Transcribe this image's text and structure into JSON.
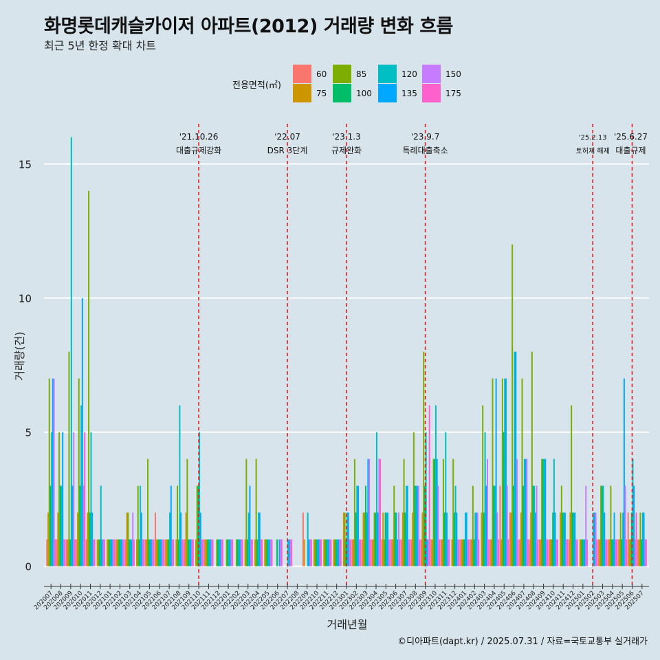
{
  "title": "화명롯데캐슬카이저 아파트(2012) 거래량 변화 흐름",
  "subtitle": "최근 5년 한정 확대 차트",
  "caption": "©디아파트(dapt.kr) / 2025.07.31 / 자료=국토교통부 실거래가",
  "chart_data": {
    "type": "bar",
    "xlabel": "거래년월",
    "ylabel": "거래량(건)",
    "ylim": [
      -0.6,
      16.5
    ],
    "yticks": [
      0,
      5,
      10,
      15
    ],
    "grid": true,
    "legend": {
      "title": "전용면적(㎡)",
      "placement": "top",
      "entries": [
        {
          "label": "60",
          "color": "#F8766D"
        },
        {
          "label": "75",
          "color": "#CD9600"
        },
        {
          "label": "85",
          "color": "#7CAE00"
        },
        {
          "label": "100",
          "color": "#00BE67"
        },
        {
          "label": "120",
          "color": "#00BFC4"
        },
        {
          "label": "135",
          "color": "#00A9FF"
        },
        {
          "label": "150",
          "color": "#C77CFF"
        },
        {
          "label": "175",
          "color": "#FF61CC"
        }
      ]
    },
    "categories": [
      "202007",
      "202008",
      "202009",
      "202010",
      "202011",
      "202012",
      "202101",
      "202102",
      "202103",
      "202104",
      "202105",
      "202106",
      "202107",
      "202108",
      "202109",
      "202110",
      "202111",
      "202112",
      "202201",
      "202202",
      "202203",
      "202204",
      "202205",
      "202206",
      "202207",
      "202208",
      "202209",
      "202210",
      "202211",
      "202212",
      "202301",
      "202302",
      "202303",
      "202304",
      "202305",
      "202306",
      "202307",
      "202308",
      "202309",
      "202310",
      "202311",
      "202312",
      "202401",
      "202402",
      "202403",
      "202404",
      "202405",
      "202406",
      "202407",
      "202408",
      "202409",
      "202410",
      "202411",
      "202412",
      "202501",
      "202502",
      "202503",
      "202504",
      "202505",
      "202506",
      "202507"
    ],
    "series": [
      {
        "name": "60",
        "values": [
          1,
          1,
          1,
          1,
          1,
          0,
          0,
          1,
          1,
          0,
          1,
          2,
          1,
          0,
          1,
          0,
          1,
          0,
          0,
          0,
          0,
          0,
          0,
          0,
          0,
          0,
          2,
          0,
          0,
          0,
          0,
          1,
          1,
          1,
          1,
          1,
          1,
          1,
          1,
          1,
          1,
          0,
          1,
          1,
          0,
          1,
          3,
          2,
          1,
          1,
          1,
          1,
          0,
          1,
          0,
          0,
          1,
          1,
          1,
          2,
          1
        ]
      },
      {
        "name": "75",
        "values": [
          2,
          2,
          1,
          2,
          2,
          1,
          1,
          1,
          2,
          1,
          1,
          1,
          1,
          1,
          2,
          1,
          1,
          0,
          0,
          0,
          1,
          1,
          1,
          0,
          0,
          0,
          1,
          1,
          1,
          1,
          2,
          1,
          2,
          1,
          2,
          1,
          2,
          2,
          2,
          1,
          1,
          1,
          1,
          1,
          2,
          1,
          1,
          2,
          2,
          2,
          1,
          1,
          2,
          2,
          1,
          0,
          1,
          1,
          1,
          1,
          1
        ]
      },
      {
        "name": "85",
        "values": [
          7,
          5,
          8,
          7,
          14,
          1,
          1,
          1,
          2,
          3,
          4,
          1,
          1,
          3,
          4,
          3,
          1,
          1,
          1,
          1,
          4,
          4,
          1,
          0,
          0,
          0,
          0,
          1,
          1,
          1,
          2,
          4,
          2,
          2,
          1,
          3,
          4,
          5,
          8,
          4,
          4,
          4,
          1,
          3,
          6,
          7,
          7,
          12,
          7,
          8,
          4,
          1,
          3,
          6,
          1,
          0,
          3,
          3,
          2,
          1,
          2
        ]
      },
      {
        "name": "100",
        "values": [
          3,
          3,
          1,
          3,
          2,
          1,
          1,
          1,
          1,
          1,
          1,
          1,
          1,
          1,
          1,
          3,
          1,
          1,
          1,
          1,
          1,
          1,
          1,
          1,
          0,
          0,
          0,
          1,
          1,
          1,
          1,
          2,
          3,
          2,
          2,
          2,
          2,
          3,
          3,
          4,
          2,
          2,
          1,
          1,
          2,
          3,
          5,
          3,
          3,
          3,
          4,
          2,
          2,
          2,
          1,
          0,
          3,
          1,
          1,
          2,
          1
        ]
      },
      {
        "name": "120",
        "values": [
          5,
          3,
          16,
          6,
          5,
          3,
          1,
          1,
          1,
          3,
          1,
          1,
          2,
          6,
          1,
          5,
          1,
          1,
          1,
          1,
          2,
          2,
          1,
          0,
          1,
          0,
          2,
          1,
          1,
          1,
          2,
          3,
          2,
          5,
          2,
          2,
          3,
          3,
          5,
          6,
          5,
          3,
          2,
          2,
          5,
          3,
          7,
          8,
          4,
          3,
          4,
          4,
          2,
          2,
          1,
          2,
          3,
          1,
          2,
          4,
          2
        ]
      },
      {
        "name": "135",
        "values": [
          7,
          5,
          3,
          10,
          2,
          1,
          1,
          1,
          1,
          2,
          1,
          1,
          3,
          2,
          1,
          2,
          1,
          1,
          1,
          1,
          3,
          2,
          1,
          1,
          1,
          0,
          1,
          1,
          1,
          1,
          2,
          3,
          4,
          2,
          2,
          1,
          3,
          3,
          1,
          4,
          2,
          2,
          2,
          2,
          3,
          7,
          7,
          8,
          4,
          2,
          4,
          2,
          2,
          2,
          1,
          2,
          2,
          2,
          7,
          3,
          2
        ]
      },
      {
        "name": "150",
        "values": [
          7,
          1,
          5,
          3,
          1,
          1,
          1,
          1,
          2,
          1,
          1,
          1,
          1,
          1,
          1,
          1,
          1,
          1,
          1,
          1,
          1,
          1,
          1,
          1,
          1,
          0,
          1,
          1,
          1,
          1,
          1,
          1,
          4,
          4,
          1,
          2,
          1,
          3,
          1,
          3,
          1,
          1,
          1,
          2,
          4,
          2,
          3,
          4,
          4,
          3,
          1,
          1,
          1,
          1,
          3,
          2,
          1,
          1,
          3,
          1,
          1
        ]
      },
      {
        "name": "175",
        "values": [
          1,
          1,
          1,
          5,
          1,
          1,
          1,
          1,
          1,
          1,
          1,
          1,
          1,
          1,
          1,
          1,
          1,
          1,
          1,
          1,
          1,
          1,
          1,
          1,
          1,
          0,
          1,
          1,
          1,
          1,
          1,
          1,
          1,
          4,
          1,
          1,
          1,
          1,
          6,
          1,
          1,
          1,
          1,
          1,
          1,
          1,
          1,
          1,
          1,
          1,
          1,
          1,
          1,
          1,
          1,
          1,
          1,
          1,
          1,
          2,
          1
        ]
      }
    ],
    "annotations": [
      {
        "date": "202110",
        "label_top": "'21.10.26",
        "label_bottom": "대출규제강화"
      },
      {
        "date": "202207",
        "label_top": "'22.07",
        "label_bottom": "DSR 3단계"
      },
      {
        "date": "202301",
        "label_top": "'23.1.3",
        "label_bottom": "규제완화"
      },
      {
        "date": "202309",
        "label_top": "'23.9.7",
        "label_bottom": "특례대출축소"
      },
      {
        "date": "202502",
        "label_top": "'25.2.13",
        "label_bottom": "토허제 해제"
      },
      {
        "date": "202506",
        "label_top": "'25.6.27",
        "label_bottom": "대출규제"
      }
    ]
  }
}
